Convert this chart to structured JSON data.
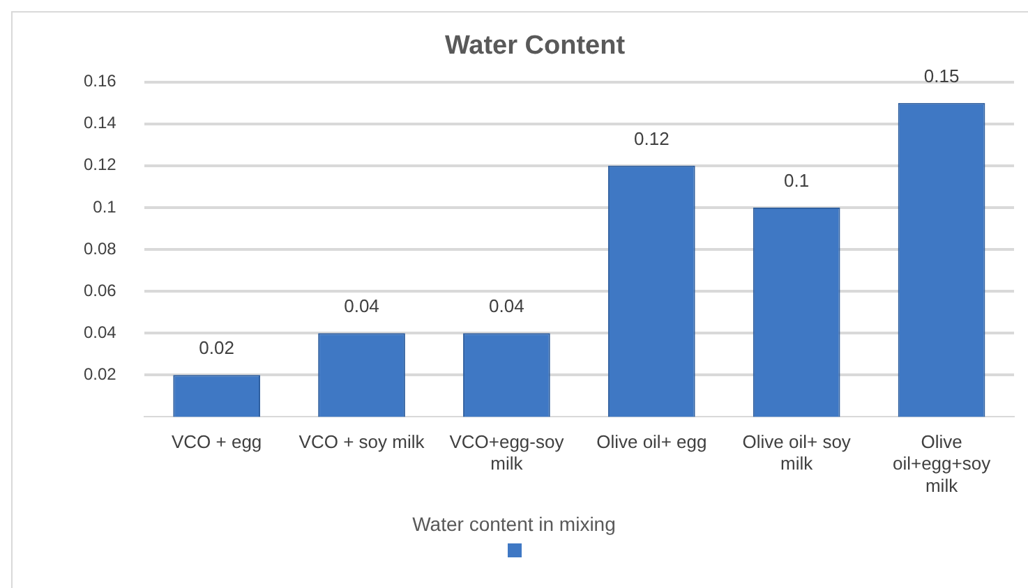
{
  "chart_data": {
    "type": "bar",
    "title": "Water Content",
    "categories": [
      "VCO + egg",
      "VCO + soy milk",
      "VCO+egg-soy milk",
      "Olive oil+ egg",
      "Olive oil+ soy milk",
      "Olive oil+egg+soy milk"
    ],
    "series": [
      {
        "name": "Water content in mixing",
        "color": "#3f78c4",
        "values": [
          0.02,
          0.04,
          0.04,
          0.12,
          0.1,
          0.15
        ]
      }
    ],
    "ylim": [
      0,
      0.16
    ],
    "yticks": [
      0.02,
      0.04,
      0.06,
      0.08,
      0.1,
      0.12,
      0.14,
      0.16
    ],
    "grid": "y",
    "legend": "bottom",
    "data_labels": true
  }
}
